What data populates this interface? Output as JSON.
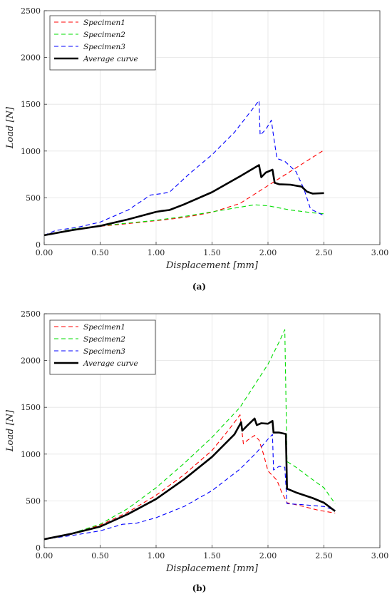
{
  "chart_data": [
    {
      "type": "line",
      "caption": "(a)",
      "xlabel": "Displacement [mm]",
      "ylabel": "Load [N]",
      "xlim": [
        0,
        3
      ],
      "ylim": [
        0,
        2500
      ],
      "xticks": [
        "0.00",
        "0.50",
        "1.00",
        "1.50",
        "2.00",
        "2.50",
        "3.00"
      ],
      "yticks": [
        "0",
        "500",
        "1000",
        "1500",
        "2000",
        "2500"
      ],
      "grid": true,
      "legend_position": "top-left",
      "series": [
        {
          "name": "Specimen1",
          "color": "#ff0000",
          "style": "dashed",
          "points": [
            [
              0,
              100
            ],
            [
              0.25,
              160
            ],
            [
              0.5,
              195
            ],
            [
              0.75,
              225
            ],
            [
              1.0,
              255
            ],
            [
              1.25,
              290
            ],
            [
              1.5,
              345
            ],
            [
              1.75,
              440
            ],
            [
              2.0,
              630
            ],
            [
              2.25,
              820
            ],
            [
              2.5,
              1010
            ]
          ]
        },
        {
          "name": "Specimen2",
          "color": "#00dd00",
          "style": "dashed",
          "points": [
            [
              0,
              100
            ],
            [
              0.25,
              165
            ],
            [
              0.5,
              200
            ],
            [
              0.75,
              230
            ],
            [
              1.0,
              260
            ],
            [
              1.25,
              300
            ],
            [
              1.5,
              350
            ],
            [
              1.75,
              400
            ],
            [
              1.88,
              425
            ],
            [
              2.0,
              415
            ],
            [
              2.2,
              370
            ],
            [
              2.4,
              340
            ],
            [
              2.5,
              330
            ]
          ]
        },
        {
          "name": "Specimen3",
          "color": "#0000ff",
          "style": "dashed",
          "points": [
            [
              0,
              100
            ],
            [
              0.1,
              150
            ],
            [
              0.3,
              185
            ],
            [
              0.5,
              240
            ],
            [
              0.75,
              370
            ],
            [
              0.95,
              530
            ],
            [
              1.05,
              545
            ],
            [
              1.12,
              560
            ],
            [
              1.3,
              760
            ],
            [
              1.5,
              960
            ],
            [
              1.7,
              1200
            ],
            [
              1.85,
              1430
            ],
            [
              1.92,
              1540
            ],
            [
              1.93,
              1170
            ],
            [
              1.98,
              1230
            ],
            [
              2.03,
              1330
            ],
            [
              2.05,
              1160
            ],
            [
              2.08,
              920
            ],
            [
              2.15,
              890
            ],
            [
              2.25,
              780
            ],
            [
              2.32,
              600
            ],
            [
              2.38,
              380
            ],
            [
              2.5,
              310
            ]
          ]
        },
        {
          "name": "Average curve",
          "color": "#000000",
          "style": "solid",
          "points": [
            [
              0,
              100
            ],
            [
              0.25,
              155
            ],
            [
              0.5,
              200
            ],
            [
              0.75,
              270
            ],
            [
              1.0,
              350
            ],
            [
              1.05,
              360
            ],
            [
              1.12,
              370
            ],
            [
              1.25,
              430
            ],
            [
              1.5,
              560
            ],
            [
              1.75,
              730
            ],
            [
              1.92,
              850
            ],
            [
              1.94,
              720
            ],
            [
              1.98,
              770
            ],
            [
              2.04,
              800
            ],
            [
              2.06,
              660
            ],
            [
              2.1,
              645
            ],
            [
              2.2,
              640
            ],
            [
              2.3,
              620
            ],
            [
              2.35,
              565
            ],
            [
              2.4,
              545
            ],
            [
              2.5,
              550
            ]
          ]
        }
      ]
    },
    {
      "type": "line",
      "caption": "(b)",
      "xlabel": "Displacement [mm]",
      "ylabel": "Load [N]",
      "xlim": [
        0,
        3
      ],
      "ylim": [
        0,
        2500
      ],
      "xticks": [
        "0.00",
        "0.50",
        "1.00",
        "1.50",
        "2.00",
        "2.50",
        "3.00"
      ],
      "yticks": [
        "0",
        "500",
        "1000",
        "1500",
        "2000",
        "2500"
      ],
      "grid": true,
      "legend_position": "top-left",
      "series": [
        {
          "name": "Specimen1",
          "color": "#ff0000",
          "style": "dashed",
          "points": [
            [
              0,
              90
            ],
            [
              0.25,
              150
            ],
            [
              0.5,
              240
            ],
            [
              0.75,
              380
            ],
            [
              1.0,
              560
            ],
            [
              1.25,
              780
            ],
            [
              1.5,
              1040
            ],
            [
              1.65,
              1260
            ],
            [
              1.75,
              1420
            ],
            [
              1.78,
              1110
            ],
            [
              1.82,
              1150
            ],
            [
              1.88,
              1200
            ],
            [
              1.92,
              1150
            ],
            [
              1.96,
              1000
            ],
            [
              2.0,
              820
            ],
            [
              2.08,
              720
            ],
            [
              2.12,
              600
            ],
            [
              2.17,
              480
            ],
            [
              2.3,
              445
            ],
            [
              2.45,
              400
            ],
            [
              2.6,
              370
            ]
          ]
        },
        {
          "name": "Specimen2",
          "color": "#00dd00",
          "style": "dashed",
          "points": [
            [
              0,
              90
            ],
            [
              0.25,
              155
            ],
            [
              0.5,
              250
            ],
            [
              0.75,
              420
            ],
            [
              1.0,
              640
            ],
            [
              1.25,
              900
            ],
            [
              1.5,
              1180
            ],
            [
              1.75,
              1500
            ],
            [
              2.0,
              1960
            ],
            [
              2.1,
              2200
            ],
            [
              2.15,
              2330
            ],
            [
              2.17,
              920
            ],
            [
              2.25,
              860
            ],
            [
              2.35,
              770
            ],
            [
              2.5,
              640
            ],
            [
              2.6,
              470
            ]
          ]
        },
        {
          "name": "Specimen3",
          "color": "#0000ff",
          "style": "dashed",
          "points": [
            [
              0,
              90
            ],
            [
              0.25,
              130
            ],
            [
              0.5,
              180
            ],
            [
              0.7,
              250
            ],
            [
              0.82,
              260
            ],
            [
              1.0,
              320
            ],
            [
              1.25,
              440
            ],
            [
              1.5,
              610
            ],
            [
              1.75,
              840
            ],
            [
              1.9,
              1020
            ],
            [
              2.0,
              1160
            ],
            [
              2.04,
              1210
            ],
            [
              2.05,
              830
            ],
            [
              2.1,
              870
            ],
            [
              2.15,
              860
            ],
            [
              2.17,
              470
            ],
            [
              2.3,
              460
            ],
            [
              2.5,
              440
            ],
            [
              2.6,
              400
            ]
          ]
        },
        {
          "name": "Average curve",
          "color": "#000000",
          "style": "solid",
          "points": [
            [
              0,
              90
            ],
            [
              0.25,
              150
            ],
            [
              0.5,
              225
            ],
            [
              0.75,
              360
            ],
            [
              1.0,
              520
            ],
            [
              1.25,
              730
            ],
            [
              1.5,
              970
            ],
            [
              1.7,
              1210
            ],
            [
              1.76,
              1340
            ],
            [
              1.77,
              1250
            ],
            [
              1.82,
              1310
            ],
            [
              1.88,
              1380
            ],
            [
              1.9,
              1310
            ],
            [
              1.94,
              1330
            ],
            [
              2.0,
              1325
            ],
            [
              2.04,
              1355
            ],
            [
              2.05,
              1230
            ],
            [
              2.1,
              1230
            ],
            [
              2.16,
              1215
            ],
            [
              2.17,
              630
            ],
            [
              2.25,
              590
            ],
            [
              2.4,
              530
            ],
            [
              2.5,
              480
            ],
            [
              2.6,
              390
            ]
          ]
        }
      ]
    }
  ]
}
